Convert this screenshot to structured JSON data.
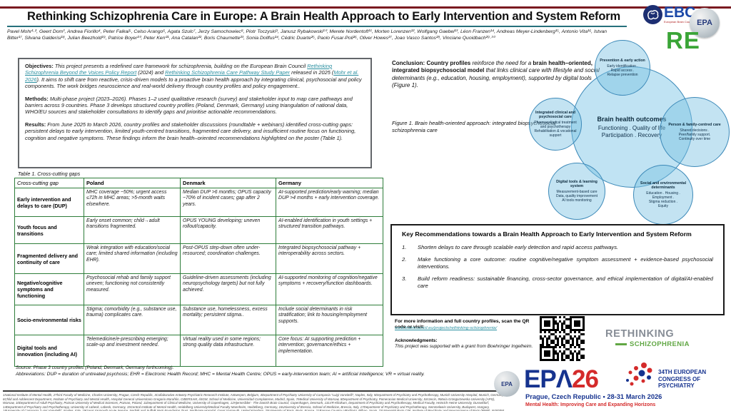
{
  "header": {
    "title": "Rethinking Schizophrenia Care in Europe: A Brain Health Approach to Early Intervention and System Reform",
    "authors": "Pavel Mohr¹·², Geert Dom³, Andrea Fiorillo⁴, Peter Falkai⁵, Celso Arango⁶, Agata Szulc⁷, Jerzy Samochowiec⁸, Piotr Toczyski⁹, Janusz Rybakowski¹⁰, Merete Nordentoft¹¹, Morten Lorenzen¹², Wolfgang Gaebel¹³, Léon Franzen¹⁴, Andreas Meyer-Lindenberg¹⁵, Antonio Vita¹⁶, Istvan Bitter¹⁷, Silvana Galderisi¹⁸, Julian Beezhold¹⁹, Patrice Boyer²⁰, Peter Kerr²¹, Ana Catalan²², Boris Chaumette²³, Sonia Dollfus²⁴, Cédric Duarte²⁵, Paolo Fusar-Poli²⁶, Oliver Howes²⁷, Joao Vasco Santos²⁸, Vinciane Quoidbach²⁹·³⁰",
    "logos": {
      "ebc": "EBC",
      "ebc_sub": "European Brain Council",
      "epa_globe": "EPA",
      "re": "RE"
    }
  },
  "sections": {
    "objectives": {
      "label": "Objectives:",
      "seg1": " This project presents a redefined care framework for schizophrenia, building on the European Brain Council ",
      "link_policy": "Rethinking Schizophrenia Beyond the Voices Policy Report",
      "seg2": " (2024) and ",
      "link_pathway": "Rethinking Schizophrenia Care Pathway Study Paper",
      "seg3": " released in 2025 (",
      "link_mohr": "Mohr et al. 2026",
      "seg4": "). It aims to shift care from reactive, crisis-driven models to a proactive brain health approach by integrating clinical, psychosocial and policy components. The work bridges neuroscience and real-world delivery through country profiles and policy engagement.."
    },
    "methods": {
      "label": "Methods:",
      "text": " Multi-phase project (2023–2026). Phases 1–2 used qualitative research (survey) and stakeholder input to map care pathways and barriers across 9 countries. Phase 3 develops structured country profiles (Poland, Denmark, Germany) using triangulation of national data, WHO/EU sources and stakeholder consultations to identify gaps and prioritise actionable recommendations."
    },
    "results": {
      "label": "Results:",
      "text": " From June 2025 to March 2026, country profiles and stakeholder discussions (roundtable + webinars) identified cross-cutting gaps: persistent delays to early intervention, limited youth-centred transitions, fragmented care delivery, and insufficient routine focus on functioning, cognition and negative symptoms. These findings inform the brain health–oriented recommendations highlighted on the poster (Table 1)."
    }
  },
  "table": {
    "caption": "Table 1. Cross-cutting gaps",
    "headers": [
      "Cross-cutting gap",
      "Poland",
      "Denmark",
      "Germany"
    ],
    "rows": [
      {
        "gap": "Early intervention and delays to care (DUP)",
        "poland": "MHC coverage ~50%; urgent access ≤72h in MHC areas; >5-month waits elsewhere.",
        "denmark": "Median DUP >6 months; OPUS capacity ~70% of incident cases; gap after 2 years.",
        "germany": "AI-supported prediction/early warning; median DUP >4 months + early intervention coverage."
      },
      {
        "gap": "Youth focus and transitions",
        "poland": "Early onset common; child→adult transitions fragmented.",
        "denmark": "OPUS YOUNG developing; uneven rollout/capacity.",
        "germany": "AI-enabled identification in youth settings + structured transition pathways."
      },
      {
        "gap": "Fragmented delivery and continuity of care",
        "poland": "Weak integration with education/social care; limited shared information (including EHR).",
        "denmark": "Post-OPUS step-down often under-resourced; coordination challenges.",
        "germany": "Integrated biopsychosocial pathway + interoperability across sectors."
      },
      {
        "gap": "Negative/cognitive symptoms and functioning",
        "poland": "Psychosocial rehab and family support uneven; functioning not consistently measured.",
        "denmark": "Guideline-driven assessments (including neuropsychology targets) but not fully achieved.",
        "germany": "AI-supported monitoring of cognition/negative symptoms + recovery/function dashboards."
      },
      {
        "gap": "Socio-environmental risks",
        "poland": "Stigma; comorbidity (e.g., substance use, trauma) complicates care.",
        "denmark": "Substance use, homelessness, excess mortality; persistent stigma..",
        "germany": "Include social determinants in risk stratification; link to housing/employment supports."
      },
      {
        "gap": "Digital tools and innovation (including AI)",
        "poland": "Telemedicine/e-prescribing emerging; scale-up and investment needed.",
        "denmark": "Virtual reality used in some regions; strong quality data infrastructure.",
        "germany": "Core focus: AI supporting prediction + intervention; governance/ethics + implementation."
      }
    ]
  },
  "notes": {
    "source": "Source: Phase 3 country profiles (Poland, Denmark; Germany forthcoming).",
    "abbreviations": "Abbreviations: DUP = duration of untreated psychosis; EHR = Electronic Health Record; MHC = Mental Health Centre; OPUS = early-intervention team; AI = artificial intelligence; VR = virtual reality."
  },
  "conclusion": {
    "label": "Conclusion:",
    "bold1": " Country profiles",
    "seg1": " reinforce the need for a ",
    "bold2": "brain health–oriented, integrated biopsychosocial model",
    "seg2": " that links clinical care with lifestyle and social determinants (e.g., education, housing, employment), supported by digital tools (Figure 1)."
  },
  "figure": {
    "caption": "Figure 1. Brain health-oriented approach: integrated biopsychosocial schizophrenia care",
    "center": {
      "title": "Brain health outcomes",
      "lines": [
        "Functioning . Quality of life",
        "Participation . Recovery"
      ]
    },
    "satellites": {
      "prevention": {
        "title": "Prevention & early action",
        "lines": [
          "Early identification .",
          "Rapid access .",
          "Relapse prevention"
        ]
      },
      "person": {
        "title": "Person & family-centred care",
        "lines": [
          "Shared decisions .",
          "Peer/family support.",
          "Continuity over time"
        ]
      },
      "clinical": {
        "title": "Integrated clinical and psychosocial care",
        "lines": [
          "Pharmacological treatment and psychotherapy",
          "Rehabilitation & vocational support"
        ]
      },
      "digital": {
        "title": "Digital tools & learning system",
        "lines": [
          "Measurement-based care",
          "Data, quality improvement",
          "AI tools monitoring"
        ]
      },
      "social": {
        "title": "Social and environmental determinants",
        "lines": [
          "Education . Housing .",
          "Employment .",
          "Stigma reduction .",
          "Equity"
        ]
      }
    }
  },
  "recommendations": {
    "title": "Key Recommendations towards a Brain Health Approach to Early Intervention and System Reform",
    "items": [
      {
        "num": "1.",
        "text": "Shorten delays to care through scalable early detection and rapid access pathways."
      },
      {
        "num": "2.",
        "text": "Make functioning a core outcome: routine cognitive/negative symptom assessment + evidence-based psychosocial interventions."
      },
      {
        "num": "3.",
        "text": "Build reform readiness: sustainable financing, cross-sector governance, and ethical implementation of digital/AI-enabled care"
      }
    ]
  },
  "info": {
    "more": "For more information and full country profiles, scan the QR code or visit:",
    "url": "www.braincouncil.eu/projects/rethinking-schizophrenia/",
    "ack_label": "Acknowledgments:",
    "ack_text": "This project was supported with a grant from Boehringer Ingelheim."
  },
  "branding": {
    "rethinking_line1": "RETHINKING",
    "rethinking_line2": "SCHIZOPHRENIA",
    "epa26_blue": "EPΛ",
    "epa26_red": "26",
    "epa_badge": "EPA",
    "congress": "34th European Congress of Psychiatry",
    "location": "Prague, Czech Republic • 28-31 March 2026",
    "tagline": "Mental Health: Improving Care and Expanding Horizons"
  },
  "affiliations": "1National Institute of Mental Health, 2Third Faculty of Medicine, Charles University, Prague, Czech Republic, 3Collaborative Antwerp Psychiatric Research Institute, Antwerpen, Belgium, 4Department of Psychiatry University of Campania \"Luigi Vanvitelli\", Naples, Italy, 5Department of Psychiatry and Psychotherapy, Munich University Hospital, Munich, Germany, 6Child and Adolescent Department, Institute of Psychiatry and Mental Health, Hospital General Universitario Gregorio Marañón, CIBERSAM, IiSGM, School of Medicine, Universidad Complutense, Madrid, Spain, 7Medical University of Warsaw, 8Department of Psychiatry, Pomeranian Medical University, Szczecin, 9Maria Grzegorzewska University (APS), Warsaw, 10Department of Adult Psychiatry, Poznan University of Medical Sciences, Poznan, Poland, 11Department of Clinical Medicine, University of Copenhagen, 12Hjernerådet - The Danish Brain Council, Copenhagen, Denmark, 13LVR-Klinikum, Department of Psychiatry and Psychotherapy, Medical Faculty, Heinrich-Heine-University, Dusseldorf, 14Department of Psychiatry and Psychotherapy, University of Lübeck, Lübeck, Germany, 15Central Institute of Mental Health, Heidelberg University/Medical Faculty Mannheim, Heidelberg, Germany, 16University of Brescia, School of Medicine, Brescia, Italy, 17Department of Psychiatry and Psychotherapy, Semmelweis University, Budapest, Hungary, 18University of Campania \"Luigi Vanvitelli\", Naples, Italy, 19Great Yarmouth Acute Service, Norfolk and Suffolk NHS Foundation Trust, Northgate Hospital, Great Yarmouth, United Kingdom, 20University of Paris, Paris, France, 21Basque Country UPV/EHU, Bilbao, Spain, 23Université Paris Cité, Institute of Psychiatry and Neuroscience of Paris (IPNP), INSERM U1266, GHU-Paris Psychiatrie et Neurosciences, Hôpital Sainte-Anne, Paris, 24University Caen Normandie, Neuropsychology, Brussels, Belgium, 26Department of Psychosis Studies, Institute of Psychiatry, Psychology and Neuroscience, King's College London, 27Institute of Psychiatry, Psychology and Neuroscience, King's College London, London, United Kingdom, 28Department of Community Medicine, Information and Health Decision Sciences, Faculty of Medicine, University of Porto, Porto, Portugal, 29European Brain Council, Brussels, Belgium, 30Warwick Medical School, University of Warwick, Coventry, United Kingdom"
}
